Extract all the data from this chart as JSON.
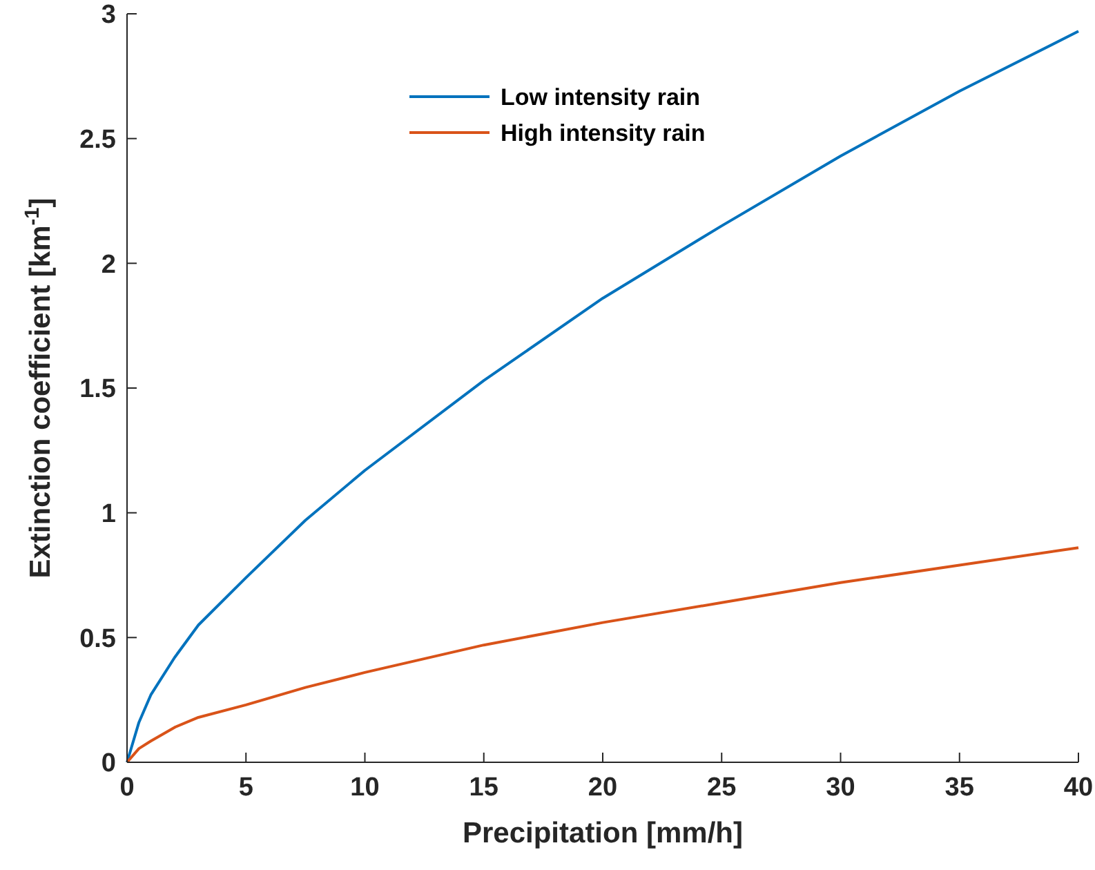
{
  "chart_data": {
    "type": "line",
    "xlabel": "Precipitation [mm/h]",
    "ylabel": "Extinction coefficient [km$^{-1}$]",
    "xlim": [
      0,
      40
    ],
    "ylim": [
      0,
      3
    ],
    "xticks": [
      0,
      5,
      10,
      15,
      20,
      25,
      30,
      35,
      40
    ],
    "yticks": [
      0,
      0.5,
      1,
      1.5,
      2,
      2.5,
      3
    ],
    "x": [
      0,
      0.5,
      1,
      2,
      3,
      5,
      7.5,
      10,
      15,
      20,
      25,
      30,
      35,
      40
    ],
    "series": [
      {
        "name": "Low intensity rain",
        "color": "#0072bd",
        "values": [
          0,
          0.16,
          0.27,
          0.42,
          0.55,
          0.74,
          0.97,
          1.17,
          1.53,
          1.86,
          2.15,
          2.43,
          2.69,
          2.93
        ]
      },
      {
        "name": "High intensity rain",
        "color": "#d95319",
        "values": [
          0,
          0.055,
          0.085,
          0.14,
          0.18,
          0.23,
          0.3,
          0.36,
          0.47,
          0.56,
          0.64,
          0.72,
          0.79,
          0.86
        ]
      }
    ],
    "legend": "top",
    "grid": false,
    "marker": "none",
    "line_style": "solid"
  }
}
